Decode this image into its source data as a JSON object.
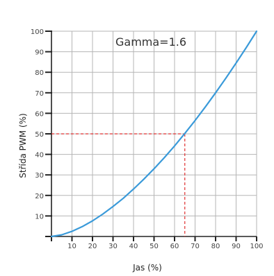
{
  "chart_data": {
    "type": "line",
    "title": "Gamma=1.6",
    "xlabel": "Jas (%)",
    "ylabel": "Střída PWM (%)",
    "xlim": [
      0,
      100
    ],
    "ylim": [
      0,
      100
    ],
    "x_ticks": [
      10,
      20,
      30,
      40,
      50,
      60,
      70,
      80,
      90,
      100
    ],
    "y_ticks": [
      10,
      20,
      30,
      40,
      50,
      60,
      70,
      80,
      90,
      100
    ],
    "grid": true,
    "series": [
      {
        "gamma": 1.6,
        "color": "#3a9ad9",
        "x": [
          0,
          5,
          10,
          15,
          20,
          25,
          30,
          35,
          40,
          45,
          50,
          55,
          60,
          65,
          70,
          75,
          80,
          85,
          90,
          95,
          100
        ],
        "y": [
          0,
          0.8,
          2.5,
          4.8,
          7.6,
          10.9,
          14.6,
          18.6,
          23.1,
          27.9,
          33.0,
          38.4,
          44.1,
          50.2,
          56.5,
          63.1,
          70.0,
          77.1,
          84.5,
          92.1,
          100
        ]
      }
    ],
    "annotations": [
      {
        "type": "guide",
        "x": 65,
        "y": 50,
        "color": "#e03030",
        "style": "dashed"
      }
    ]
  }
}
